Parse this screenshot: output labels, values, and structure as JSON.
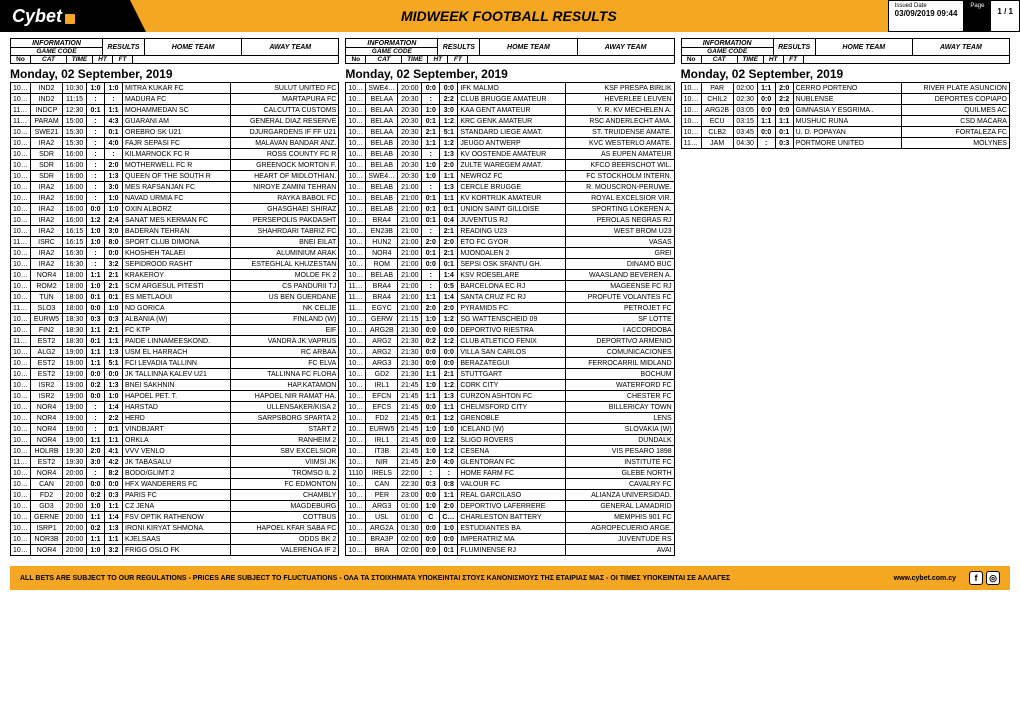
{
  "header": {
    "logo_text": "Cybet",
    "title": "MIDWEEK FOOTBALL RESULTS",
    "issued_label": "Issued Date",
    "issued_value": "03/09/2019 09:44",
    "page_label": "Page",
    "page_value": "1 / 1"
  },
  "colhead": {
    "information": "INFORMATION",
    "game_code": "GAME CODE",
    "results": "RESULTS",
    "home_team": "HOME TEAM",
    "away_team": "AWAY TEAM",
    "no": "No",
    "cat": "CAT",
    "time": "TIME",
    "ht": "HT",
    "ft": "FT"
  },
  "date_label": "Monday, 02 September, 2019",
  "columns": [
    [
      [
        "1098",
        "IND2",
        "10:30",
        "1:0",
        "1:0",
        "MITRA KUKAR FC",
        "SULUT UNITED FC"
      ],
      [
        "1099",
        "IND2",
        "11:15",
        ":",
        ":",
        "MADURA FC",
        "MARTAPURA FC"
      ],
      [
        "1100",
        "INDCP",
        "12:30",
        "0:1",
        "1:1",
        "MOHAMMEDAN SC",
        "CALCUTTA CUSTOMS"
      ],
      [
        "1101",
        "PARAM",
        "15:00",
        ":",
        "4:3",
        "GUARANI AM",
        "GENERAL DIAZ RESERVE"
      ],
      [
        "1014",
        "SWE21",
        "15:30",
        ":",
        "0:1",
        "OREBRO SK U21",
        "DJURGARDENS IF FF U21"
      ],
      [
        "1090",
        "IRA2",
        "15:30",
        ":",
        "4:0",
        "FAJR SEPASI FC",
        "MALAVAN BANDAR ANZ."
      ],
      [
        "1017",
        "SDR",
        "16:00",
        ":",
        ":",
        "KILMARNOCK FC R",
        "ROSS COUNTY FC R"
      ],
      [
        "1018",
        "SDR",
        "16:00",
        ":",
        "2:0",
        "MOTHERWELL FC R",
        "GREENOCK MORTON F."
      ],
      [
        "1019",
        "SDR",
        "16:00",
        ":",
        "1:3",
        "QUEEN OF THE SOUTH R",
        "HEART OF MIDLOTHIAN."
      ],
      [
        "1092",
        "IRA2",
        "16:00",
        ":",
        "3:0",
        "MES RAFSANJAN FC",
        "NIROYE ZAMINI TEHRAN"
      ],
      [
        "1093",
        "IRA2",
        "16:00",
        ":",
        "1:0",
        "NAVAD URMIA FC",
        "RAYKA BABOL FC"
      ],
      [
        "1094",
        "IRA2",
        "16:00",
        "0:0",
        "1:0",
        "OXIN ALBORZ",
        "GHASGHAEI SHIRAZ"
      ],
      [
        "1095",
        "IRA2",
        "16:00",
        "1:2",
        "2:4",
        "SANAT MES KERMAN FC",
        "PERSEPOLIS PAKDASHT"
      ],
      [
        "1091",
        "IRA2",
        "16:15",
        "1:0",
        "3:0",
        "BADERAN TEHRAN",
        "SHAHRDARI TABRIZ FC"
      ],
      [
        "1102",
        "ISRC",
        "16:15",
        "1:0",
        "8:0",
        "SPORT CLUB DIMONA",
        "BNEI EILAT"
      ],
      [
        "1096",
        "IRA2",
        "16:30",
        ":",
        "0:0",
        "KHOSHEH TALAEI",
        "ALUMINIUM ARAK"
      ],
      [
        "1097",
        "IRA2",
        "16:30",
        ":",
        "3:2",
        "SEPIDROOD RASHT",
        "ESTEGHLAL KHUZESTAN"
      ],
      [
        "1022",
        "NOR4",
        "18:00",
        "1:1",
        "2:1",
        "KRAKEROY",
        "MOLDE FK 2"
      ],
      [
        "1023",
        "ROM2",
        "18:00",
        "1:0",
        "2:1",
        "SCM ARGESUL PITESTI",
        "CS PANDURII TJ"
      ],
      [
        "1024",
        "TUN",
        "18:00",
        "0:1",
        "0:1",
        "ES METLAOUI",
        "US BEN GUERDANE"
      ],
      [
        "1103",
        "SLO3",
        "18:00",
        "0:0",
        "1:0",
        "ND GORICA",
        "NK CELJE"
      ],
      [
        "1021",
        "EURW5",
        "18:30",
        "0:3",
        "0:3",
        "ALBANIA (W)",
        "FINLAND (W)"
      ],
      [
        "1025",
        "FIN2",
        "18:30",
        "1:1",
        "2:1",
        "FC KTP",
        "EIF"
      ],
      [
        "1104",
        "EST2",
        "18:30",
        "0:1",
        "1:1",
        "PAIDE LINNAMEESKOND.",
        "VANDRA JK VAPRUS"
      ],
      [
        "1026",
        "ALG2",
        "19:00",
        "1:1",
        "1:3",
        "USM EL HARRACH",
        "RC ARBAA"
      ],
      [
        "1027",
        "EST2",
        "19:00",
        "1:1",
        "5:1",
        "FCI LEVADIA TALLINN",
        "FC ELVA"
      ],
      [
        "1028",
        "EST2",
        "19:00",
        "0:0",
        "0:0",
        "JK TALLINNA KALEV U21",
        "TALLINNA FC FLORA"
      ],
      [
        "1029",
        "ISR2",
        "19:00",
        "0:2",
        "1:3",
        "BNEI SAKHNIN",
        "HAP.KATAMON"
      ],
      [
        "1030",
        "ISR2",
        "19:00",
        "0:0",
        "1:0",
        "HAPOEL PET. T.",
        "HAPOEL NIR RAMAT HA."
      ],
      [
        "1031",
        "NOR4",
        "19:00",
        ":",
        "1:4",
        "HARSTAD",
        "ULLENSAKER/KISA 2"
      ],
      [
        "1032",
        "NOR4",
        "19:00",
        ":",
        "2:2",
        "HERD",
        "SARPSBORG SPARTA 2"
      ],
      [
        "1033",
        "NOR4",
        "19:00",
        ":",
        "0:1",
        "VINDBJART",
        "START 2"
      ],
      [
        "1034",
        "NOR4",
        "19:00",
        "1:1",
        "1:1",
        "ORKLA",
        "RANHEIM 2"
      ],
      [
        "1036",
        "HOLRB",
        "19:30",
        "2:0",
        "4:1",
        "VVV VENLO",
        "SBV EXCELSIOR"
      ],
      [
        "1105",
        "EST2",
        "19:30",
        "3:0",
        "4:2",
        "JK TABASALU",
        "VIIMSI JK"
      ],
      [
        "1015",
        "NOR4",
        "20:00",
        ":",
        "8:2",
        "BODO/GLIMT 2",
        "TROMSO IL 2"
      ],
      [
        "1037",
        "CAN",
        "20:00",
        "0:0",
        "0:0",
        "HFX WANDERERS FC",
        "FC EDMONTON"
      ],
      [
        "1038",
        "FD2",
        "20:00",
        "0:2",
        "0:3",
        "PARIS FC",
        "CHAMBLY"
      ],
      [
        "1039",
        "GD3",
        "20:00",
        "1:0",
        "1:1",
        "CZ JENA",
        "MAGDEBURG"
      ],
      [
        "1040",
        "GERNE",
        "20:00",
        "1:1",
        "1:4",
        "FSV OPTIK RATHENOW",
        "COTTBUS"
      ],
      [
        "1041",
        "ISRP1",
        "20:00",
        "0:2",
        "1:3",
        "IRONI KIRYAT SHMONA.",
        "HAPOEL KFAR SABA FC"
      ],
      [
        "1042",
        "NOR3B",
        "20:00",
        "1:1",
        "1:1",
        "KJELSAAS",
        "ODDS BK 2"
      ],
      [
        "1043",
        "NOR4",
        "20:00",
        "1:0",
        "3:2",
        "FRIGG OSLO FK",
        "VALERENGA IF 2"
      ]
    ],
    [
      [
        "1044",
        "SWE4VG",
        "20:00",
        "0:0",
        "0:0",
        "IFK MALMO",
        "KSF PRESPA BIRLIK"
      ],
      [
        "1045",
        "BELAA",
        "20:30",
        ":",
        "2:2",
        "CLUB BRUGGE AMATEUR",
        "HEVERLEE LEUVEN"
      ],
      [
        "1046",
        "BELAA",
        "20:30",
        "1:0",
        "3:0",
        "KAA GENT AMATEUR",
        "Y. R. KV MECHELEN A."
      ],
      [
        "1047",
        "BELAA",
        "20:30",
        "0:1",
        "1:2",
        "KRC GENK AMATEUR",
        "RSC ANDERLECHT AMA."
      ],
      [
        "1048",
        "BELAA",
        "20:30",
        "2:1",
        "5:1",
        "STANDARD LIEGE AMAT.",
        "ST. TRUIDENSE AMATE."
      ],
      [
        "1049",
        "BELAB",
        "20:30",
        "1:1",
        "1:2",
        "JEUGD ANTWERP",
        "KVC WESTERLO AMATE."
      ],
      [
        "1050",
        "BELAB",
        "20:30",
        ":",
        "1:3",
        "KV OOSTENDE AMATEUR",
        "AS EUPEN AMATEUR"
      ],
      [
        "1052",
        "BELAB",
        "20:30",
        "1:0",
        "2:0",
        "ZULTE WAREGEM AMAT.",
        "KFCO BEERSCHOT WIL."
      ],
      [
        "1053",
        "SWE4SS",
        "20:30",
        "1:0",
        "1:1",
        "NEWROZ FC",
        "FC STOCKHOLM INTERN."
      ],
      [
        "1055",
        "BELAB",
        "21:00",
        ":",
        "1:3",
        "CERCLE BRUGGE",
        "R. MOUSCRON-PERUWE."
      ],
      [
        "1056",
        "BELAB",
        "21:00",
        "0:1",
        "1:1",
        "KV KORTRIJK AMATEUR",
        "ROYAL EXCELSIOR VIR."
      ],
      [
        "1057",
        "BELAB",
        "21:00",
        "0:1",
        "0:1",
        "UNION SAINT GILLOISE",
        "SPORTING LOKEREN A."
      ],
      [
        "1058",
        "BRA4",
        "21:00",
        "0:1",
        "0:4",
        "JUVENTUS RJ",
        "PEROLAS NEGRAS RJ"
      ],
      [
        "1059",
        "EN23B",
        "21:00",
        ":",
        "2:1",
        "READING U23",
        "WEST BROM U23"
      ],
      [
        "1060",
        "HUN2",
        "21:00",
        "2:0",
        "2:0",
        "ETO FC GYOR",
        "VASAS"
      ],
      [
        "1061",
        "NOR4",
        "21:00",
        "0:1",
        "2:1",
        "MJONDALEN 2",
        "GREI"
      ],
      [
        "1062",
        "ROM",
        "21:00",
        "0:0",
        "0:1",
        "SEPSI OSK SFANTU GH.",
        "DINAMO BUC"
      ],
      [
        "1069",
        "BELAB",
        "21:00",
        ":",
        "1:4",
        "KSV ROESELARE",
        "WAASLAND BEVEREN A."
      ],
      [
        "1106",
        "BRA4",
        "21:00",
        ":",
        "0:5",
        "BARCELONA EC RJ",
        "MAGEENSE FC RJ"
      ],
      [
        "1107",
        "BRA4",
        "21:00",
        "1:1",
        "1:4",
        "SANTA CRUZ FC RJ",
        "PROFUTE VOLANTES FC"
      ],
      [
        "1108",
        "EGYC",
        "21:00",
        "2:0",
        "2:0",
        "PYRAMIDS FC",
        "PETROJET FC"
      ],
      [
        "1063",
        "GERW",
        "21:15",
        "1:0",
        "1:2",
        "SG WATTENSCHEID 09",
        "SF LOTTE"
      ],
      [
        "1064",
        "ARG2B",
        "21:30",
        "0:0",
        "0:0",
        "DEPORTIVO RIESTRA",
        "I ACCORDOBA"
      ],
      [
        "1065",
        "ARG2",
        "21:30",
        "0:2",
        "1:2",
        "CLUB ATLETICO FENIX",
        "DEPORTIVO ARMENIO"
      ],
      [
        "1066",
        "ARG2",
        "21:30",
        "0:0",
        "0:0",
        "VILLA SAN CARLOS",
        "COMUNICACIONES"
      ],
      [
        "1067",
        "ARG3",
        "21:30",
        "0:0",
        "0:0",
        "BERAZATEGUI",
        "FERROCARRIL MIDLAND"
      ],
      [
        "1070",
        "GD2",
        "21:30",
        "1:1",
        "2:1",
        "STUTTGART",
        "BOCHUM"
      ],
      [
        "1054",
        "IRL1",
        "21:45",
        "1:0",
        "1:2",
        "CORK CITY",
        "WATERFORD FC"
      ],
      [
        "1071",
        "EFCN",
        "21:45",
        "1:1",
        "1:3",
        "CURZON ASHTON FC",
        "CHESTER FC"
      ],
      [
        "1072",
        "EFCS",
        "21:45",
        "0:0",
        "1:1",
        "CHELMSFORD CITY",
        "BILLERICAY TOWN"
      ],
      [
        "1073",
        "FD2",
        "21:45",
        "0:1",
        "1:2",
        "GRENOBLE",
        "LENS"
      ],
      [
        "1074",
        "EURW5",
        "21:45",
        "1:0",
        "1:0",
        "ICELAND (W)",
        "SLOVAKIA (W)"
      ],
      [
        "1075",
        "IRL1",
        "21:45",
        "0:0",
        "1:2",
        "SLIGO ROVERS",
        "DUNDALK"
      ],
      [
        "1076",
        "IT3B",
        "21:45",
        "1:0",
        "1:2",
        "CESENA",
        "VIS PESARO 1898"
      ],
      [
        "1077",
        "NIR",
        "21:45",
        "2:0",
        "4:0",
        "GLENTORAN FC",
        "INSTITUTE FC"
      ],
      [
        "1110",
        "IRELS",
        "22:00",
        ":",
        ":",
        "HOME FARM FC",
        "GLEBE NORTH"
      ],
      [
        "1078",
        "CAN",
        "22:30",
        "0:3",
        "0:8",
        "VALOUR FC",
        "CAVALRY FC"
      ],
      [
        "1079",
        "PER",
        "23:00",
        "0:0",
        "1:1",
        "REAL GARCILASO",
        "ALIANZA UNIVERSIDAD."
      ],
      [
        "1080",
        "ARG3",
        "01:00",
        "1:0",
        "2:0",
        "DEPORTIVO LAFERRERE",
        "GENERAL LAMADRID"
      ],
      [
        "1081",
        "USL",
        "01:00",
        "C",
        "Canc",
        "CHARLESTON BATTERY",
        "MEMPHIS 901 FC"
      ],
      [
        "1082",
        "ARG2A",
        "01:30",
        "0:0",
        "1:0",
        "ESTUDIANTES BA",
        "AGROPECUERIO ARGE."
      ],
      [
        "1083",
        "BRA3P",
        "02:00",
        "0:0",
        "0:0",
        "IMPERATRIZ MA",
        "JUVENTUDE RS"
      ],
      [
        "1084",
        "BRA",
        "02:00",
        "0:0",
        "0:1",
        "FLUMINENSE RJ",
        "AVAI"
      ]
    ],
    [
      [
        "1086",
        "PAR",
        "02:00",
        "1:1",
        "2:0",
        "CERRO PORTENO",
        "RIVER PLATE ASUNCION"
      ],
      [
        "1087",
        "CHIL2",
        "02:30",
        "0:0",
        "2:2",
        "NUBLENSE",
        "DEPORTES COPIAPO"
      ],
      [
        "1088",
        "ARG2B",
        "03:05",
        "0:0",
        "0:0",
        "GIMNASIA Y ESGRIMA .",
        "QUILMES AC"
      ],
      [
        "1089",
        "ECU",
        "03:15",
        "1:1",
        "1:1",
        "MUSHUC RUNA",
        "CSD MACARA"
      ],
      [
        "1085",
        "CLB2",
        "03:45",
        "0:0",
        "0:1",
        "U. D. POPAYAN",
        "FORTALEZA FC"
      ],
      [
        "1109",
        "JAM",
        "04:30",
        ":",
        "0:3",
        "PORTMORE UNITED",
        "MOLYNES"
      ]
    ]
  ],
  "footer": {
    "disclaimer": "ALL BETS ARE SUBJECT TO OUR REGULATIONS - PRICES ARE SUBJECT TO FLUCTUATIONS - ΟΛΑ ΤΑ ΣΤΟΙΧΗΜΑΤΑ ΥΠΟΚΕΙΝΤΑΙ ΣΤΟΥΣ ΚΑΝΟΝΙΣΜΟΥΣ ΤΗΣ ΕΤΑΙΡΙΑΣ ΜΑΣ - ΟΙ ΤΙΜΕΣ ΥΠΟΚΕΙΝΤΑΙ ΣΕ ΑΛΛΑΓΕΣ",
    "url": "www.cybet.com.cy",
    "social_fb": "f",
    "social_ig": "◎"
  }
}
